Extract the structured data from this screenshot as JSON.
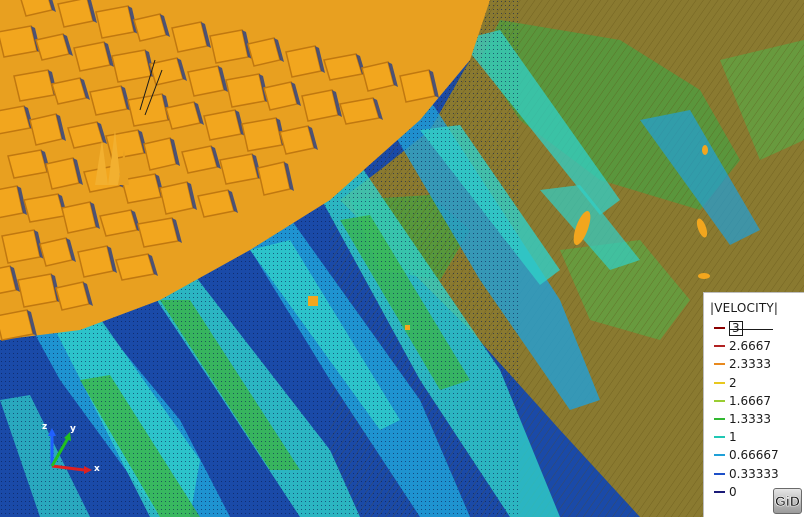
{
  "legend": {
    "title": "|VELOCITY|",
    "entries": [
      {
        "value": "3",
        "color": "#8b0000"
      },
      {
        "value": "2.6667",
        "color": "#b22222"
      },
      {
        "value": "2.3333",
        "color": "#e8891e"
      },
      {
        "value": "2",
        "color": "#e8c81e"
      },
      {
        "value": "1.6667",
        "color": "#9acd32"
      },
      {
        "value": "1.3333",
        "color": "#32b832"
      },
      {
        "value": "1",
        "color": "#20c8b4"
      },
      {
        "value": "0.66667",
        "color": "#20a0d8"
      },
      {
        "value": "0.33333",
        "color": "#1e50c8"
      },
      {
        "value": "0",
        "color": "#1a1a78"
      }
    ]
  },
  "axis_triad": {
    "x_label": "x",
    "y_label": "y",
    "z_label": "z",
    "x_color": "#e02020",
    "y_color": "#20c020",
    "z_color": "#2060ff"
  },
  "logo": {
    "text": "GiD"
  },
  "scene_colors": {
    "buildings": "#f2a61e",
    "building_shadow": "#c07810",
    "deep_water": "#1838a8",
    "mid_water": "#20a0d8",
    "cyan": "#30d0c8",
    "green": "#3cb43c",
    "olive": "#8a7a30"
  }
}
